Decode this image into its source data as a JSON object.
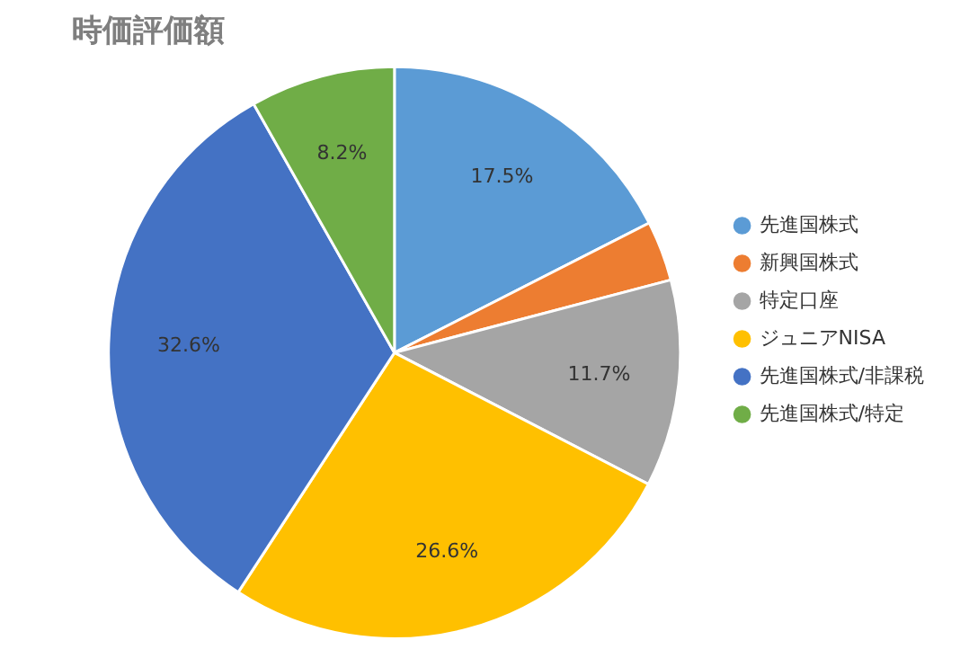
{
  "chart_data": {
    "type": "pie",
    "title": "時価評価額",
    "categories": [
      "先進国株式",
      "新興国株式",
      "特定口座",
      "ジュニアNISA",
      "先進国株式/非課税",
      "先進国株式/特定"
    ],
    "values": [
      17.5,
      3.4,
      11.7,
      26.6,
      32.6,
      8.2
    ],
    "value_labels": [
      "17.5%",
      null,
      "11.7%",
      "26.6%",
      "32.6%",
      "8.2%"
    ],
    "colors": [
      "#5b9bd5",
      "#ed7d31",
      "#a5a5a5",
      "#ffc000",
      "#4472c4",
      "#70ad47"
    ],
    "legend": "right"
  }
}
